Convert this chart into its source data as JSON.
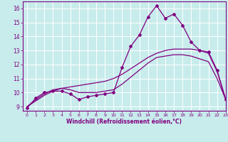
{
  "xlabel": "Windchill (Refroidissement éolien,°C)",
  "bg_color": "#c8ecec",
  "grid_color": "#ffffff",
  "line_color": "#800080",
  "xlim": [
    -0.5,
    23
  ],
  "ylim": [
    8.7,
    16.5
  ],
  "xticks": [
    0,
    1,
    2,
    3,
    4,
    5,
    6,
    7,
    8,
    9,
    10,
    11,
    12,
    13,
    14,
    15,
    16,
    17,
    18,
    19,
    20,
    21,
    22,
    23
  ],
  "yticks": [
    9,
    10,
    11,
    12,
    13,
    14,
    15,
    16
  ],
  "hours": [
    0,
    1,
    2,
    3,
    4,
    5,
    6,
    7,
    8,
    9,
    10,
    11,
    12,
    13,
    14,
    15,
    16,
    17,
    18,
    19,
    20,
    21,
    22,
    23
  ],
  "windchill": [
    8.9,
    9.6,
    10.0,
    10.1,
    10.1,
    9.9,
    9.5,
    9.7,
    9.8,
    9.9,
    10.0,
    11.8,
    13.3,
    14.1,
    15.4,
    16.2,
    15.3,
    15.6,
    14.8,
    13.6,
    13.0,
    12.9,
    11.6,
    9.5
  ],
  "line2": [
    9.0,
    9.4,
    9.8,
    10.1,
    10.3,
    10.4,
    10.5,
    10.6,
    10.7,
    10.8,
    11.0,
    11.3,
    11.7,
    12.1,
    12.5,
    12.8,
    13.0,
    13.1,
    13.1,
    13.1,
    13.0,
    12.8,
    11.5,
    9.5
  ],
  "line3": [
    9.0,
    9.5,
    9.9,
    10.2,
    10.3,
    10.2,
    10.0,
    10.0,
    10.0,
    10.1,
    10.2,
    10.6,
    11.1,
    11.6,
    12.1,
    12.5,
    12.6,
    12.7,
    12.7,
    12.6,
    12.4,
    12.2,
    11.0,
    9.5
  ]
}
